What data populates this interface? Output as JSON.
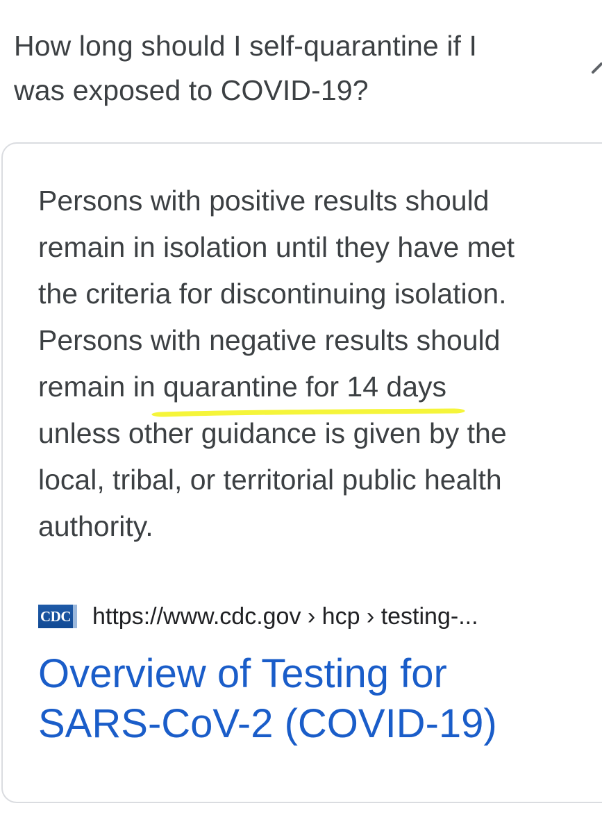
{
  "question": {
    "line1": "How long should I self-quarantine if I",
    "line2": "was exposed to COVID-19?"
  },
  "snippet": {
    "line1": "Persons with positive results should",
    "line2": "remain in isolation until they have met",
    "line3": "the criteria for discontinuing isolation.",
    "line4": "Persons with negative results should",
    "line5_prefix": "remain in ",
    "line5_highlight": "quarantine for 14 days",
    "line6": "unless other guidance is given by the",
    "line7": "local, tribal, or territorial public health",
    "line8": "authority.",
    "highlight_color": "#f5f53a"
  },
  "source": {
    "logo_text": "CDC",
    "url": "https://www.cdc.gov › hcp › testing-..."
  },
  "result": {
    "title_line1": "Overview of Testing for",
    "title_line2": "SARS-CoV-2 (COVID-19)",
    "link_color": "#1a5dc9"
  },
  "icons": {
    "expand": "chevron-icon"
  }
}
